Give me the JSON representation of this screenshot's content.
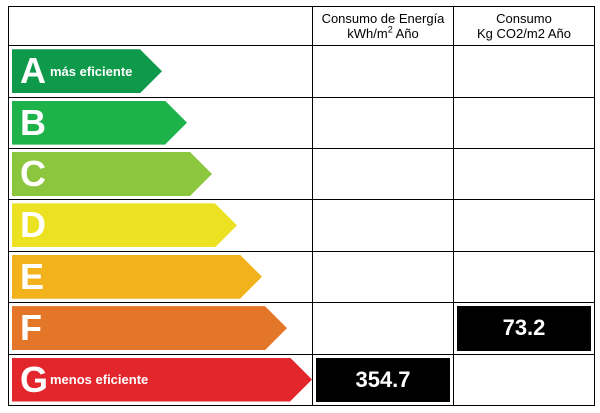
{
  "header": {
    "col1_line1": "Consumo de Energía",
    "col1_line2": "kWh/m",
    "col1_sup": "2",
    "col1_line2_suffix": " Año",
    "col2_line1": "Consumo",
    "col2_line2": "Kg CO2/m2 Año"
  },
  "ratings": [
    {
      "letter": "A",
      "sub": "más eficiente",
      "color": "#0e9a4a"
    },
    {
      "letter": "B",
      "sub": "",
      "color": "#1db34a"
    },
    {
      "letter": "C",
      "sub": "",
      "color": "#8cc63f"
    },
    {
      "letter": "D",
      "sub": "",
      "color": "#ece222"
    },
    {
      "letter": "E",
      "sub": "",
      "color": "#f2b21b"
    },
    {
      "letter": "F",
      "sub": "",
      "color": "#e4762a"
    },
    {
      "letter": "G",
      "sub": "menos eficiente",
      "color": "#e2262c"
    }
  ],
  "values": {
    "energy": {
      "rating": "G",
      "value": "354.7"
    },
    "co2": {
      "rating": "F",
      "value": "73.2"
    }
  }
}
